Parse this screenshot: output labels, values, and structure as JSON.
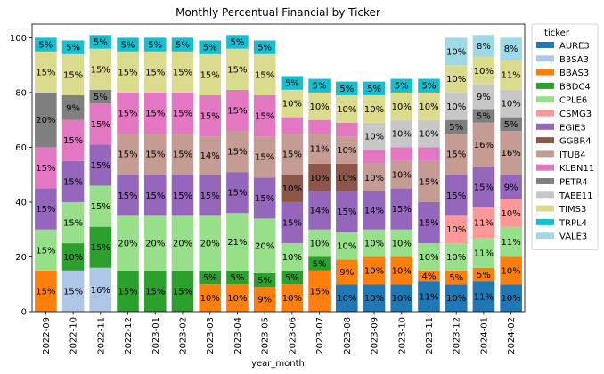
{
  "chart_data": {
    "type": "bar",
    "stacked": true,
    "title": "Monthly Percentual Financial by Ticker",
    "xlabel": "year_month",
    "ylabel": "",
    "ylim": [
      0,
      105
    ],
    "yticks": [
      0,
      20,
      40,
      60,
      80,
      100
    ],
    "grid": false,
    "legend_title": "ticker",
    "legend_position": "outside-right",
    "categories": [
      "2022-09",
      "2022-10",
      "2022-11",
      "2022-12",
      "2023-01",
      "2023-02",
      "2023-03",
      "2023-04",
      "2023-05",
      "2023-06",
      "2023-07",
      "2023-08",
      "2023-09",
      "2023-10",
      "2023-11",
      "2023-12",
      "2024-01",
      "2024-02"
    ],
    "series": [
      {
        "name": "AURE3",
        "color": "#1f77b4",
        "values": [
          0,
          0,
          0,
          0,
          0,
          0,
          0,
          0,
          0,
          0,
          0,
          10,
          10,
          10,
          11,
          10,
          11,
          10
        ],
        "labels": [
          "",
          "",
          "",
          "",
          "",
          "",
          "",
          "",
          "",
          "",
          "",
          "10%",
          "10%",
          "10%",
          "11%",
          "10%",
          "11%",
          "10%"
        ]
      },
      {
        "name": "B3SA3",
        "color": "#aec7e8",
        "values": [
          0,
          15,
          16,
          0,
          0,
          0,
          0,
          0,
          0,
          0,
          0,
          0,
          0,
          0,
          0,
          0,
          0,
          0
        ],
        "labels": [
          "",
          "15%",
          "16%",
          "",
          "",
          "",
          "",
          "",
          "",
          "",
          "",
          "",
          "",
          "",
          "",
          "",
          "",
          ""
        ]
      },
      {
        "name": "BBAS3",
        "color": "#ff7f0e",
        "values": [
          15,
          0,
          0,
          0,
          0,
          0,
          10,
          10,
          9,
          10,
          15,
          9,
          10,
          10,
          4,
          5,
          5,
          10
        ],
        "labels": [
          "15%",
          "",
          "",
          "",
          "",
          "",
          "10%",
          "10%",
          "9%",
          "10%",
          "15%",
          "9%",
          "10%",
          "10%",
          "4%",
          "5%",
          "5%",
          "10%"
        ]
      },
      {
        "name": "BBDC4",
        "color": "#2ca02c",
        "values": [
          0,
          10,
          15,
          15,
          15,
          15,
          5,
          5,
          5,
          5,
          5,
          0,
          0,
          0,
          0,
          0,
          0,
          0
        ],
        "labels": [
          "",
          "10%",
          "15%",
          "15%",
          "15%",
          "15%",
          "5%",
          "5%",
          "5%",
          "5%",
          "5%",
          "",
          "",
          "",
          "",
          "",
          "",
          ""
        ]
      },
      {
        "name": "CPLE6",
        "color": "#98df8a",
        "values": [
          15,
          15,
          15,
          20,
          20,
          20,
          20,
          21,
          20,
          10,
          10,
          10,
          10,
          10,
          10,
          10,
          11,
          11
        ],
        "labels": [
          "15%",
          "15%",
          "15%",
          "20%",
          "20%",
          "20%",
          "20%",
          "21%",
          "20%",
          "10%",
          "10%",
          "10%",
          "10%",
          "10%",
          "10%",
          "10%",
          "11%",
          "11%"
        ]
      },
      {
        "name": "CSMG3",
        "color": "#ff9896",
        "values": [
          0,
          0,
          0,
          0,
          0,
          0,
          0,
          0,
          0,
          0,
          0,
          0,
          0,
          0,
          0,
          10,
          11,
          10
        ],
        "labels": [
          "",
          "",
          "",
          "",
          "",
          "",
          "",
          "",
          "",
          "",
          "",
          "",
          "",
          "",
          "",
          "10%",
          "11%",
          "10%"
        ]
      },
      {
        "name": "EGIE3",
        "color": "#9467bd",
        "values": [
          15,
          15,
          15,
          15,
          15,
          15,
          15,
          15,
          15,
          15,
          14,
          15,
          14,
          15,
          15,
          15,
          15,
          9
        ],
        "labels": [
          "15%",
          "15%",
          "15%",
          "15%",
          "15%",
          "15%",
          "15%",
          "15%",
          "15%",
          "15%",
          "14%",
          "15%",
          "14%",
          "15%",
          "15%",
          "15%",
          "15%",
          "9%"
        ]
      },
      {
        "name": "GGBR4",
        "color": "#8c564b",
        "values": [
          0,
          0,
          0,
          0,
          0,
          0,
          0,
          0,
          0,
          10,
          10,
          10,
          0,
          0,
          0,
          0,
          0,
          0
        ],
        "labels": [
          "",
          "",
          "",
          "",
          "",
          "",
          "",
          "",
          "",
          "10%",
          "10%",
          "10%",
          "",
          "",
          "",
          "",
          "",
          ""
        ]
      },
      {
        "name": "ITUB4",
        "color": "#c49c94",
        "values": [
          0,
          0,
          0,
          15,
          15,
          15,
          14,
          15,
          15,
          15,
          11,
          10,
          10,
          10,
          15,
          15,
          16,
          16
        ],
        "labels": [
          "",
          "",
          "",
          "15%",
          "15%",
          "15%",
          "14%",
          "15%",
          "15%",
          "15%",
          "11%",
          "10%",
          "10%",
          "10%",
          "15%",
          "15%",
          "16%",
          "16%"
        ]
      },
      {
        "name": "KLBN11",
        "color": "#e377c2",
        "values": [
          15,
          15,
          15,
          15,
          15,
          15,
          15,
          15,
          15,
          6,
          5,
          5,
          5,
          5,
          5,
          0,
          0,
          0
        ],
        "labels": [
          "15%",
          "15%",
          "15%",
          "15%",
          "15%",
          "15%",
          "15%",
          "15%",
          "15%",
          "",
          "",
          "",
          "",
          "",
          "",
          "",
          "",
          ""
        ]
      },
      {
        "name": "PETR4",
        "color": "#7f7f7f",
        "values": [
          20,
          9,
          5,
          0,
          0,
          0,
          0,
          0,
          0,
          0,
          0,
          0,
          0,
          0,
          0,
          5,
          5,
          5
        ],
        "labels": [
          "20%",
          "9%",
          "5%",
          "",
          "",
          "",
          "",
          "",
          "",
          "",
          "",
          "",
          "",
          "",
          "",
          "5%",
          "5%",
          "5%"
        ]
      },
      {
        "name": "TAEE11",
        "color": "#c7c7c7",
        "values": [
          0,
          0,
          0,
          0,
          0,
          0,
          0,
          0,
          0,
          0,
          0,
          0,
          10,
          10,
          10,
          10,
          9,
          10
        ],
        "labels": [
          "",
          "",
          "",
          "",
          "",
          "",
          "",
          "",
          "",
          "",
          "",
          "",
          "10%",
          "10%",
          "10%",
          "10%",
          "9%",
          "10%"
        ]
      },
      {
        "name": "TIMS3",
        "color": "#dbdb8d",
        "values": [
          15,
          15,
          15,
          15,
          15,
          15,
          15,
          15,
          15,
          10,
          10,
          10,
          10,
          10,
          10,
          10,
          10,
          11
        ],
        "labels": [
          "15%",
          "15%",
          "15%",
          "15%",
          "15%",
          "15%",
          "15%",
          "15%",
          "15%",
          "10%",
          "10%",
          "10%",
          "10%",
          "10%",
          "10%",
          "10%",
          "10%",
          "11%"
        ]
      },
      {
        "name": "TRPL4",
        "color": "#17becf",
        "values": [
          5,
          5,
          5,
          5,
          5,
          5,
          5,
          5,
          5,
          5,
          5,
          5,
          5,
          5,
          5,
          0,
          0,
          0
        ],
        "labels": [
          "5%",
          "5%",
          "5%",
          "5%",
          "5%",
          "5%",
          "5%",
          "5%",
          "5%",
          "5%",
          "5%",
          "5%",
          "5%",
          "5%",
          "5%",
          "",
          "",
          ""
        ]
      },
      {
        "name": "VALE3",
        "color": "#9edae5",
        "values": [
          0,
          0,
          0,
          0,
          0,
          0,
          0,
          0,
          0,
          0,
          0,
          0,
          0,
          0,
          0,
          10,
          8,
          8
        ],
        "labels": [
          "",
          "",
          "",
          "",
          "",
          "",
          "",
          "",
          "",
          "",
          "",
          "",
          "",
          "",
          "",
          "10%",
          "8%",
          "8%"
        ]
      }
    ]
  }
}
